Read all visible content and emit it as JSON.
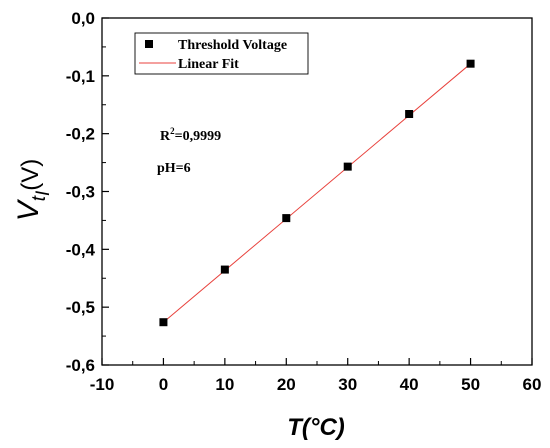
{
  "chart_data": {
    "type": "scatter",
    "xlabel": "T(°C)",
    "ylabel": {
      "main": "V",
      "sub1": "t",
      "sub2": "I",
      "unit": "(V)"
    },
    "xlim": [
      -10,
      60
    ],
    "ylim": [
      -0.6,
      0.0
    ],
    "x_ticks": [
      -10,
      0,
      10,
      20,
      30,
      40,
      50,
      60
    ],
    "x_tick_labels": [
      "-10",
      "0",
      "10",
      "20",
      "30",
      "40",
      "50",
      "60"
    ],
    "y_ticks": [
      0.0,
      -0.1,
      -0.2,
      -0.3,
      -0.4,
      -0.5,
      -0.6
    ],
    "y_tick_labels": [
      "0,0",
      "-0,1",
      "-0,2",
      "-0,3",
      "-0,4",
      "-0,5",
      "-0,6"
    ],
    "series": [
      {
        "name": "Threshold Voltage",
        "kind": "scatter",
        "marker": "square",
        "color": "#000000",
        "x": [
          0,
          10,
          20,
          30,
          40,
          50
        ],
        "y": [
          -0.526,
          -0.435,
          -0.346,
          -0.257,
          -0.166,
          -0.079
        ]
      },
      {
        "name": "Linear Fit",
        "kind": "line",
        "color": "#e8413c",
        "x": [
          0,
          50
        ],
        "y": [
          -0.526,
          -0.079
        ]
      }
    ],
    "annotations": [
      {
        "base": "R",
        "sup": "2",
        "rest": "=0,9999"
      },
      {
        "text": "pH=6"
      }
    ],
    "legend": {
      "placement": "top-left",
      "boxed": true
    },
    "grid": false
  }
}
